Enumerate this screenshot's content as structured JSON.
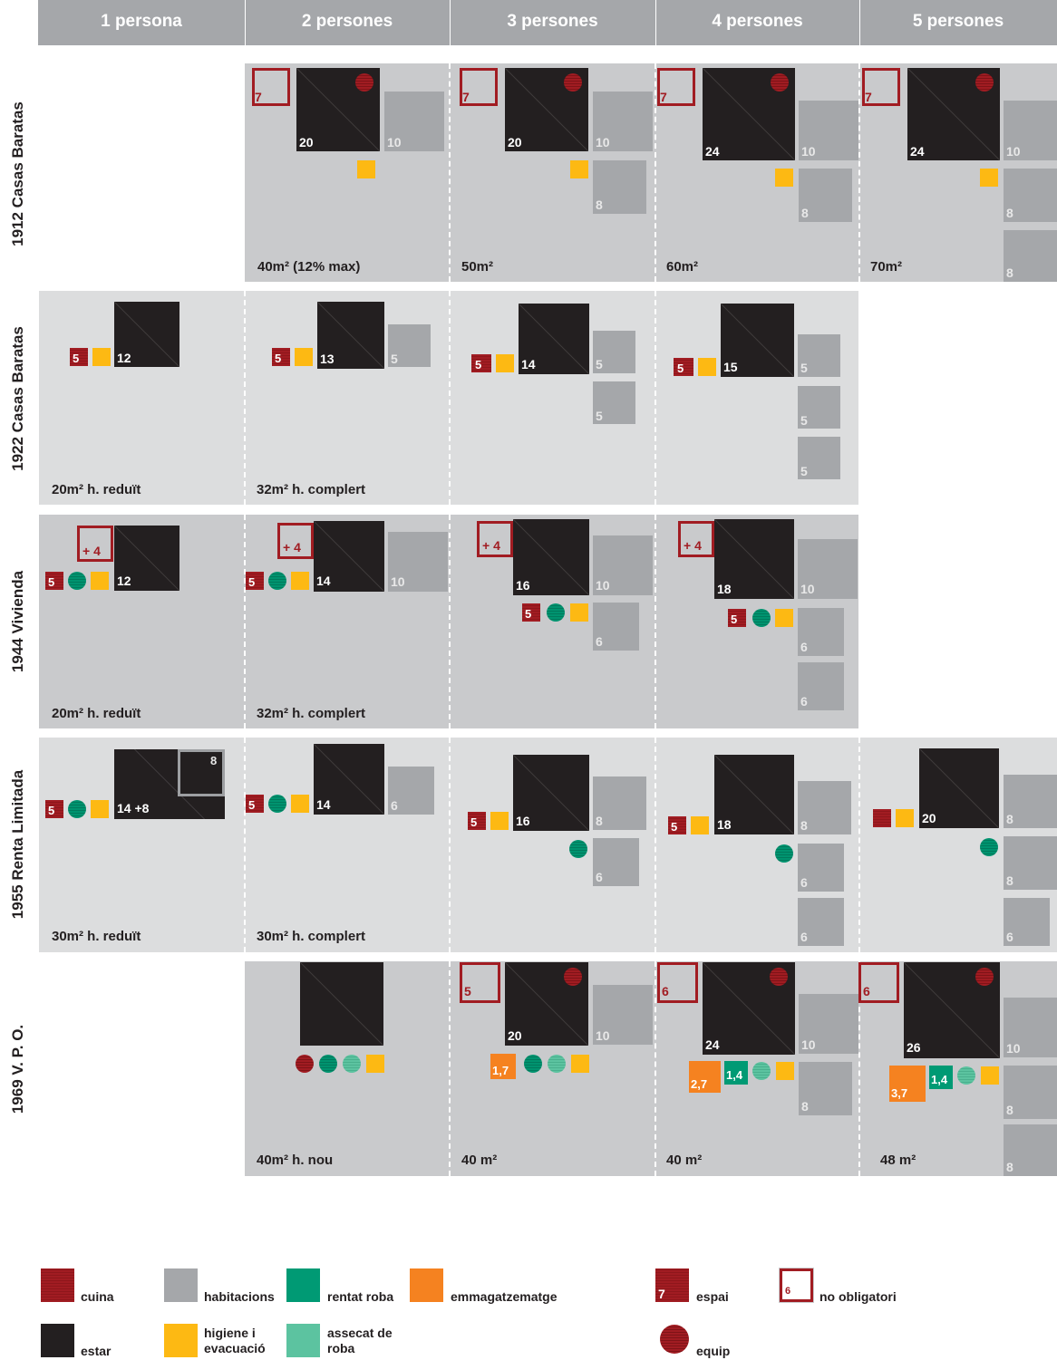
{
  "columns": [
    "1 persona",
    "2 persones",
    "3 persones",
    "4 persones",
    "5 persones"
  ],
  "rows": [
    {
      "label": "1912 Casas Baratas",
      "areas": [
        "",
        "40m² (12% max)",
        "50m²",
        "60m²",
        "70m²"
      ],
      "estar": [
        "",
        "20",
        "20",
        "24",
        "24"
      ],
      "espai": [
        "",
        "7",
        "7",
        "7",
        "7"
      ],
      "habitacions": [
        "",
        [
          "10"
        ],
        [
          "10",
          "8"
        ],
        [
          "10",
          "8"
        ],
        [
          "10",
          "8",
          "8"
        ]
      ]
    },
    {
      "label": "1922  Casas Baratas",
      "areas": [
        "20m² h. reduït",
        "32m² h. complert",
        "",
        "",
        ""
      ],
      "estar": [
        "12",
        "13",
        "14",
        "15",
        ""
      ],
      "cuina": [
        "5",
        "5",
        "5",
        "5",
        ""
      ],
      "habitacions": [
        [],
        [
          "5"
        ],
        [
          "5",
          "5"
        ],
        [
          "5",
          "5",
          "5"
        ],
        []
      ]
    },
    {
      "label": "1944  Vivienda",
      "areas": [
        "20m² h. reduït",
        "32m² h. complert",
        "",
        "",
        ""
      ],
      "estar": [
        "12",
        "14",
        "16",
        "18",
        ""
      ],
      "cuina": [
        "5",
        "5",
        "5",
        "5",
        ""
      ],
      "espai": [
        "+ 4",
        "+ 4",
        "+ 4",
        "+ 4",
        ""
      ],
      "habitacions": [
        [],
        [
          "10"
        ],
        [
          "10",
          "6"
        ],
        [
          "10",
          "6",
          "6"
        ],
        []
      ]
    },
    {
      "label": "1955 Renta Limitada",
      "areas": [
        "30m² h. reduït",
        "30m² h. complert",
        "",
        "",
        ""
      ],
      "estar": [
        "14 +8",
        "14",
        "16",
        "18",
        "20"
      ],
      "cuina": [
        "5",
        "5",
        "5",
        "5",
        ""
      ],
      "espai": [
        "8",
        "",
        "",
        "",
        ""
      ],
      "habitacions": [
        [],
        [
          "6"
        ],
        [
          "8",
          "6"
        ],
        [
          "8",
          "6",
          "6"
        ],
        [
          "8",
          "8",
          "6"
        ]
      ]
    },
    {
      "label": "1969 V. P. O.",
      "areas": [
        "",
        "40m² h. nou",
        "40 m²",
        "40 m²",
        "48 m²"
      ],
      "estar": [
        "",
        "",
        "20",
        "24",
        "26"
      ],
      "espai": [
        "",
        "",
        "5",
        "6",
        "6"
      ],
      "emmagatzematge": [
        "",
        "",
        "1,7",
        "2,7",
        "3,7"
      ],
      "rentat": [
        "",
        "",
        "",
        "1,4",
        "1,4"
      ],
      "habitacions": [
        [],
        [],
        [
          "10"
        ],
        [
          "10",
          "8"
        ],
        [
          "10",
          "8",
          "8"
        ]
      ]
    }
  ],
  "legend": {
    "cuina": "cuina",
    "estar": "estar",
    "habitacions": "habitacions",
    "higiene": "higiene i evacuació",
    "rentat": "rentat roba",
    "assecat": "assecat de roba",
    "emmagatzematge": "emmagatzematge",
    "espai": "espai",
    "espai_num": "7",
    "equip": "equip",
    "no_obligatori": "no obligatori",
    "no_obligatori_num": "6"
  },
  "colors": {
    "cuina": "#a11c22",
    "estar": "#231f20",
    "habitacions": "#a5a7aa",
    "higiene": "#fdb913",
    "rentat": "#009a74",
    "assecat": "#5cc3a0",
    "emmagatzematge": "#f58220"
  }
}
